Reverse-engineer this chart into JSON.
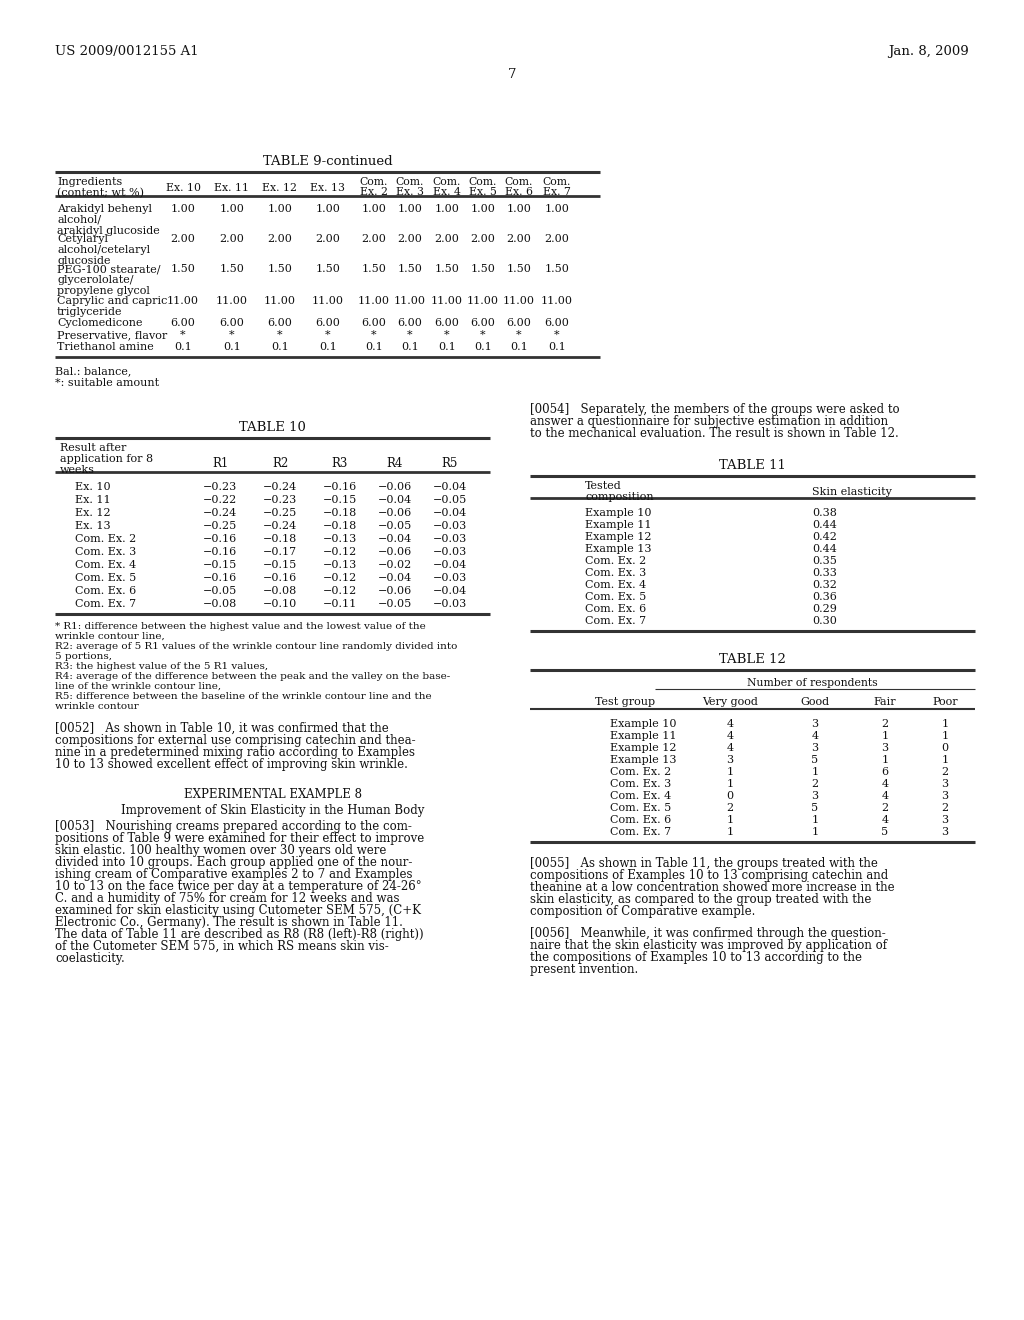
{
  "header_left": "US 2009/0012155 A1",
  "header_right": "Jan. 8, 2009",
  "page_number": "7",
  "bg_color": "#ffffff",
  "table9_title": "TABLE 9-continued",
  "table9_rows": [
    [
      "Arakidyl behenyl\nalcohol/\narakidyl glucoside",
      "1.00",
      "1.00",
      "1.00",
      "1.00",
      "1.00",
      "1.00",
      "1.00",
      "1.00",
      "1.00",
      "1.00"
    ],
    [
      "Cetylaryl\nalcohol/cetelaryl\nglucoside",
      "2.00",
      "2.00",
      "2.00",
      "2.00",
      "2.00",
      "2.00",
      "2.00",
      "2.00",
      "2.00",
      "2.00"
    ],
    [
      "PEG-100 stearate/\nglycerololate/\npropylene glycol",
      "1.50",
      "1.50",
      "1.50",
      "1.50",
      "1.50",
      "1.50",
      "1.50",
      "1.50",
      "1.50",
      "1.50"
    ],
    [
      "Caprylic and capric\ntriglyceride",
      "11.00",
      "11.00",
      "11.00",
      "11.00",
      "11.00",
      "11.00",
      "11.00",
      "11.00",
      "11.00",
      "11.00"
    ],
    [
      "Cyclomedicone",
      "6.00",
      "6.00",
      "6.00",
      "6.00",
      "6.00",
      "6.00",
      "6.00",
      "6.00",
      "6.00",
      "6.00"
    ],
    [
      "Preservative, flavor",
      "*",
      "*",
      "*",
      "*",
      "*",
      "*",
      "*",
      "*",
      "*",
      "*"
    ],
    [
      "Triethanol amine",
      "0.1",
      "0.1",
      "0.1",
      "0.1",
      "0.1",
      "0.1",
      "0.1",
      "0.1",
      "0.1",
      "0.1"
    ]
  ],
  "table9_footnote1": "Bal.: balance,",
  "table9_footnote2": "*: suitable amount",
  "table10_title": "TABLE 10",
  "table10_rows": [
    [
      "Ex. 10",
      "−0.23",
      "−0.24",
      "−0.16",
      "−0.06",
      "−0.04"
    ],
    [
      "Ex. 11",
      "−0.22",
      "−0.23",
      "−0.15",
      "−0.04",
      "−0.05"
    ],
    [
      "Ex. 12",
      "−0.24",
      "−0.25",
      "−0.18",
      "−0.06",
      "−0.04"
    ],
    [
      "Ex. 13",
      "−0.25",
      "−0.24",
      "−0.18",
      "−0.05",
      "−0.03"
    ],
    [
      "Com. Ex. 2",
      "−0.16",
      "−0.18",
      "−0.13",
      "−0.04",
      "−0.03"
    ],
    [
      "Com. Ex. 3",
      "−0.16",
      "−0.17",
      "−0.12",
      "−0.06",
      "−0.03"
    ],
    [
      "Com. Ex. 4",
      "−0.15",
      "−0.15",
      "−0.13",
      "−0.02",
      "−0.04"
    ],
    [
      "Com. Ex. 5",
      "−0.16",
      "−0.16",
      "−0.12",
      "−0.04",
      "−0.03"
    ],
    [
      "Com. Ex. 6",
      "−0.05",
      "−0.08",
      "−0.12",
      "−0.06",
      "−0.04"
    ],
    [
      "Com. Ex. 7",
      "−0.08",
      "−0.10",
      "−0.11",
      "−0.05",
      "−0.03"
    ]
  ],
  "table10_footnote": [
    "* R1: difference between the highest value and the lowest value of the",
    "wrinkle contour line,",
    "R2: average of 5 R1 values of the wrinkle contour line randomly divided into",
    "5 portions,",
    "R3: the highest value of the 5 R1 values,",
    "R4: average of the difference between the peak and the valley on the base-",
    "line of the wrinkle contour line,",
    "R5: difference between the baseline of the wrinkle contour line and the",
    "wrinkle contour"
  ],
  "para0052": [
    "[0052]   As shown in Table 10, it was confirmed that the",
    "compositions for external use comprising catechin and thea-",
    "nine in a predetermined mixing ratio according to Examples",
    "10 to 13 showed excellent effect of improving skin wrinkle."
  ],
  "exp_example8_title": "EXPERIMENTAL EXAMPLE 8",
  "exp_example8_subtitle": "Improvement of Skin Elasticity in the Human Body",
  "para0053": [
    "[0053]   Nourishing creams prepared according to the com-",
    "positions of Table 9 were examined for their effect to improve",
    "skin elastic. 100 healthy women over 30 years old were",
    "divided into 10 groups. Each group applied one of the nour-",
    "ishing cream of Comparative examples 2 to 7 and Examples",
    "10 to 13 on the face twice per day at a temperature of 24-26°",
    "C. and a humidity of 75% for cream for 12 weeks and was",
    "examined for skin elasticity using Cutometer SEM 575, (C+K",
    "Electronic Co., Germany). The result is shown in Table 11.",
    "The data of Table 11 are described as R8 (R8 (left)-R8 (right))",
    "of the Cutometer SEM 575, in which RS means skin vis-",
    "coelasticity."
  ],
  "para0054": [
    "[0054]   Separately, the members of the groups were asked to",
    "answer a questionnaire for subjective estimation in addition",
    "to the mechanical evaluation. The result is shown in Table 12."
  ],
  "table11_title": "TABLE 11",
  "table11_rows": [
    [
      "Example 10",
      "0.38"
    ],
    [
      "Example 11",
      "0.44"
    ],
    [
      "Example 12",
      "0.42"
    ],
    [
      "Example 13",
      "0.44"
    ],
    [
      "Com. Ex. 2",
      "0.35"
    ],
    [
      "Com. Ex. 3",
      "0.33"
    ],
    [
      "Com. Ex. 4",
      "0.32"
    ],
    [
      "Com. Ex. 5",
      "0.36"
    ],
    [
      "Com. Ex. 6",
      "0.29"
    ],
    [
      "Com. Ex. 7",
      "0.30"
    ]
  ],
  "table12_title": "TABLE 12",
  "table12_subheader": "Number of respondents",
  "table12_rows": [
    [
      "Example 10",
      "4",
      "3",
      "2",
      "1"
    ],
    [
      "Example 11",
      "4",
      "4",
      "1",
      "1"
    ],
    [
      "Example 12",
      "4",
      "3",
      "3",
      "0"
    ],
    [
      "Example 13",
      "3",
      "5",
      "1",
      "1"
    ],
    [
      "Com. Ex. 2",
      "1",
      "1",
      "6",
      "2"
    ],
    [
      "Com. Ex. 3",
      "1",
      "2",
      "4",
      "3"
    ],
    [
      "Com. Ex. 4",
      "0",
      "3",
      "4",
      "3"
    ],
    [
      "Com. Ex. 5",
      "2",
      "5",
      "2",
      "2"
    ],
    [
      "Com. Ex. 6",
      "1",
      "1",
      "4",
      "3"
    ],
    [
      "Com. Ex. 7",
      "1",
      "1",
      "5",
      "3"
    ]
  ],
  "para0055": [
    "[0055]   As shown in Table 11, the groups treated with the",
    "compositions of Examples 10 to 13 comprising catechin and",
    "theanine at a low concentration showed more increase in the",
    "skin elasticity, as compared to the group treated with the",
    "composition of Comparative example."
  ],
  "para0056": [
    "[0056]   Meanwhile, it was confirmed through the question-",
    "naire that the skin elasticity was improved by application of",
    "the compositions of Examples 10 to 13 according to the",
    "present invention."
  ]
}
